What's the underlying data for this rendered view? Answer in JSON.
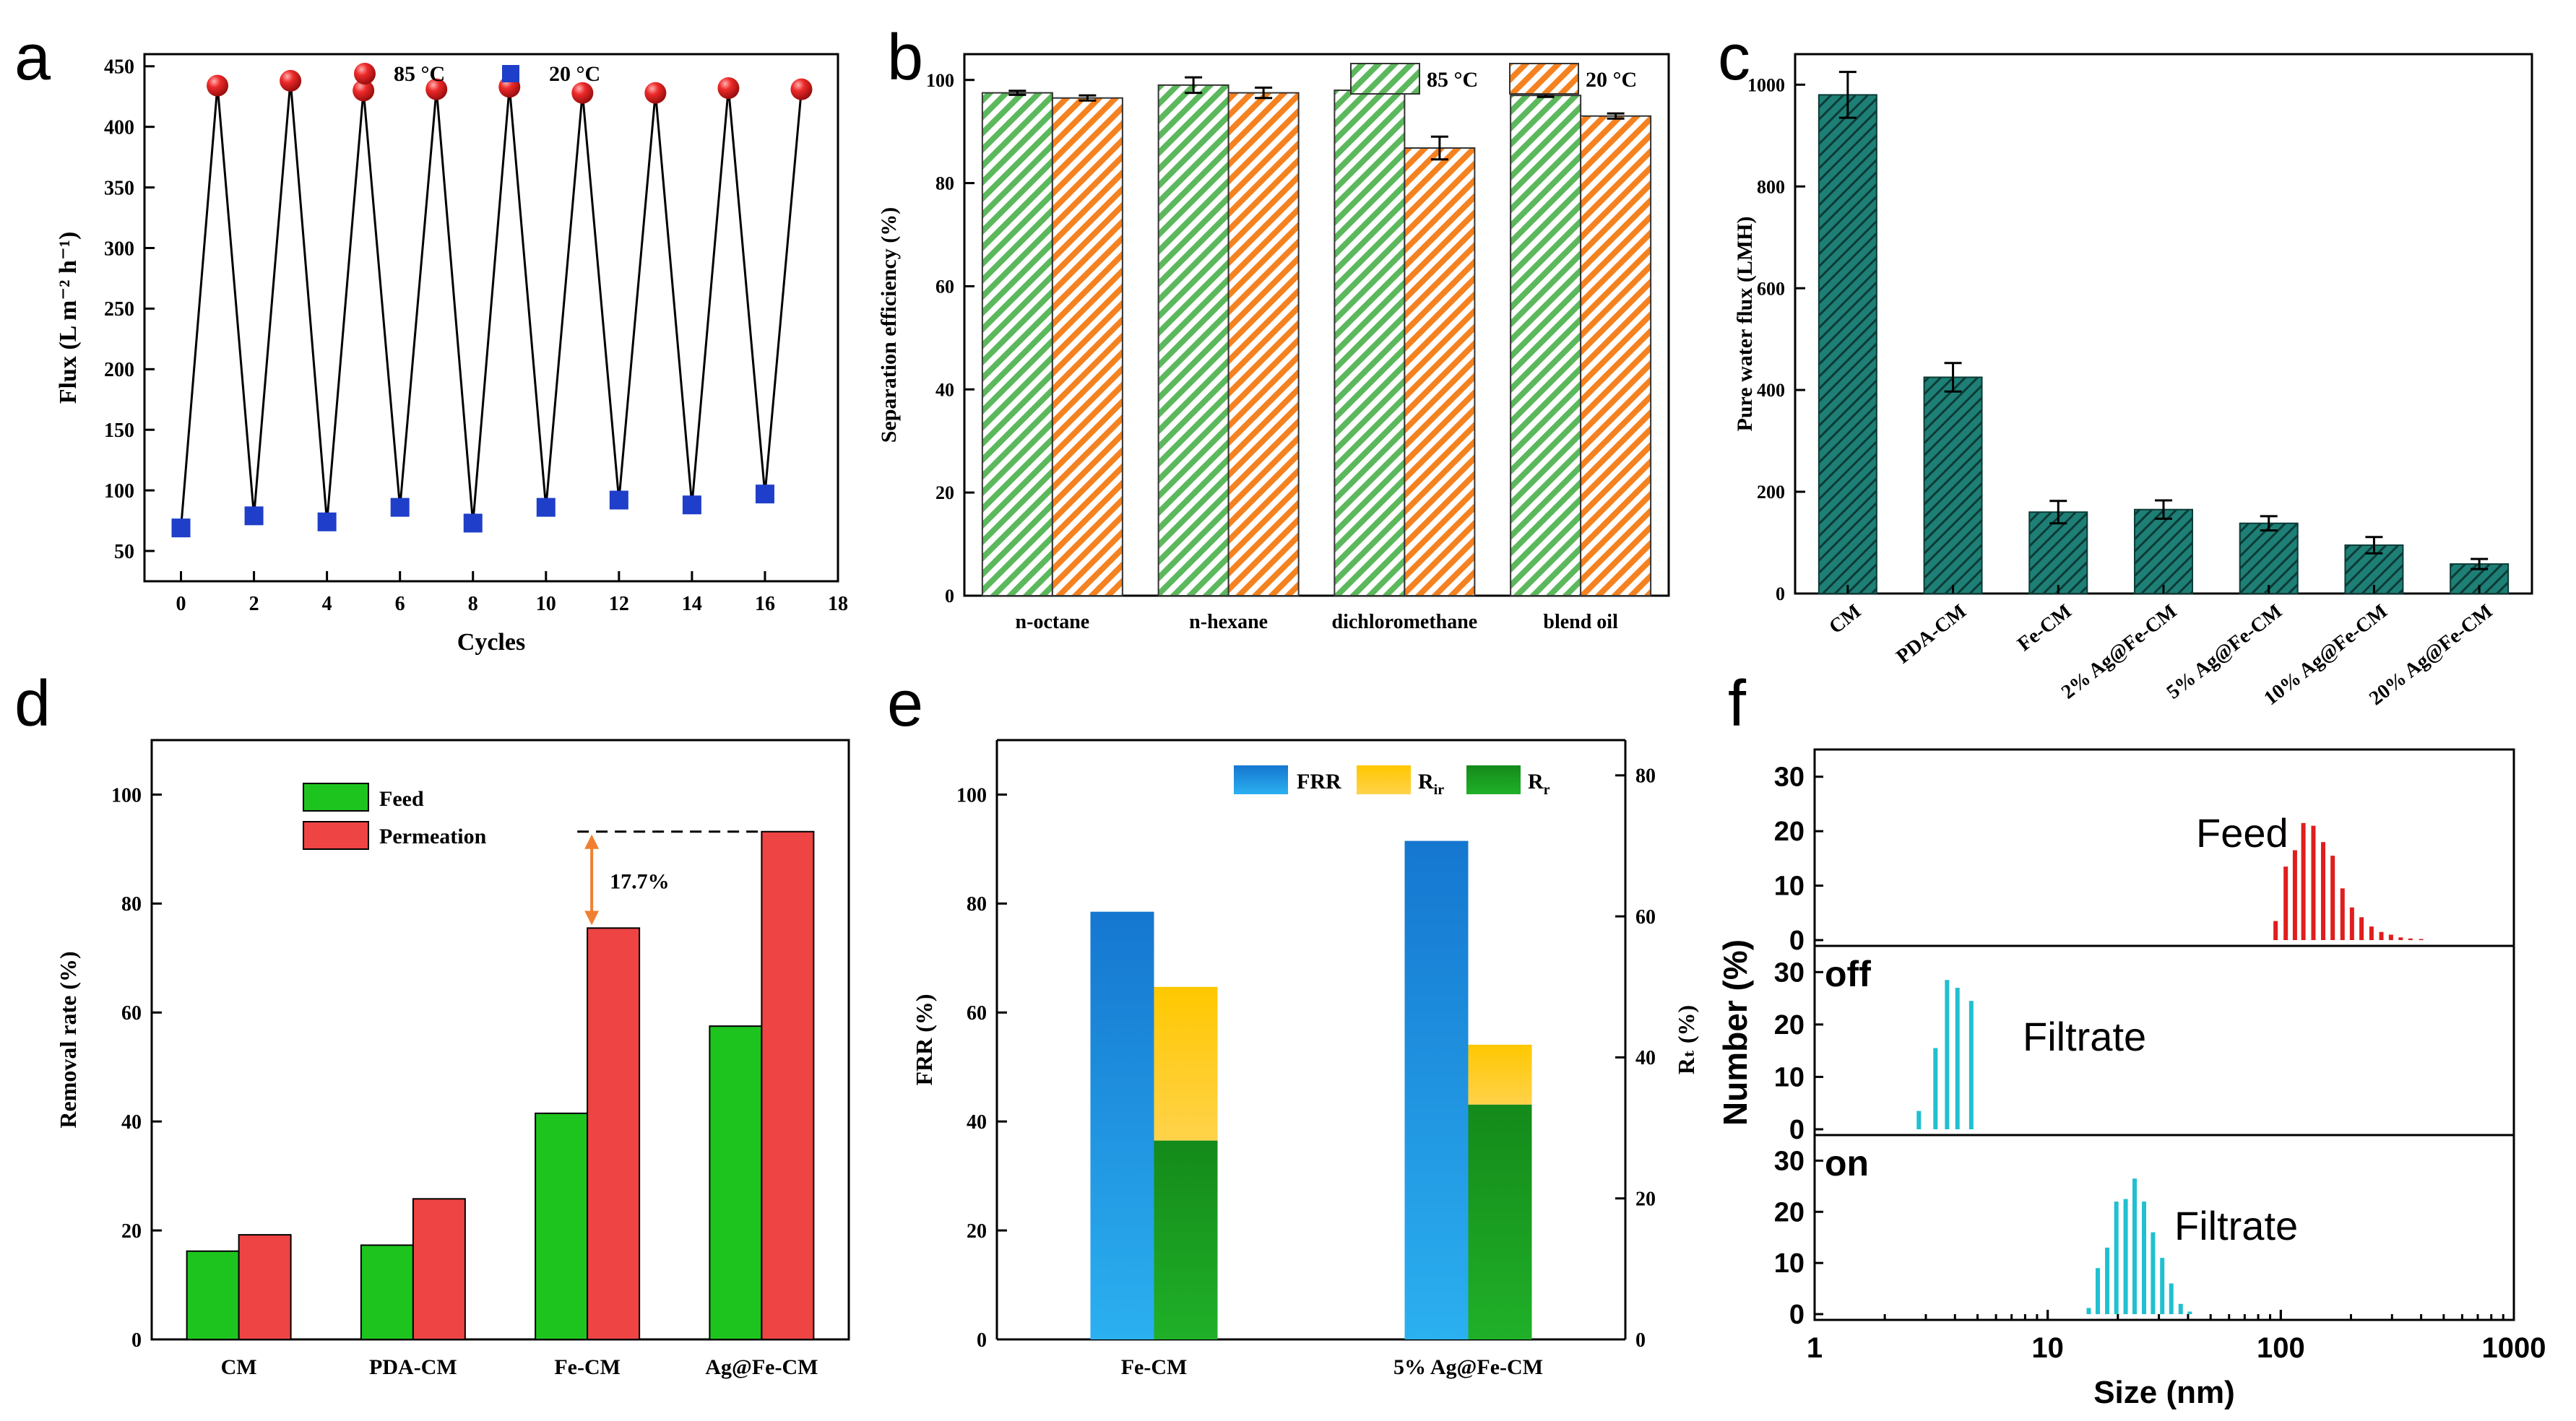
{
  "colors": {
    "red_marker": "#e8292b",
    "blue_marker": "#1f3ec9",
    "green_bar": "#5cb85c",
    "orange_bar": "#f58220",
    "teal_bar": "#1e7f76",
    "bright_green": "#1ec41e",
    "bright_red": "#ee4444",
    "frr_blue": "#1a7fd2",
    "rir_yellow": "#ffc31a",
    "rr_green": "#149c1e",
    "dist_red": "#e01e1e",
    "dist_cyan": "#20c0d0",
    "arrow_orange": "#f08030"
  },
  "chart_data": [
    {
      "panel": "a",
      "type": "line",
      "xlabel": "Cycles",
      "ylabel": "Flux (L m⁻² h⁻¹)",
      "xlim": [
        -1,
        18
      ],
      "ylim": [
        25,
        460
      ],
      "xticks": [
        "0",
        "2",
        "4",
        "6",
        "8",
        "10",
        "12",
        "14",
        "16",
        "18"
      ],
      "yticks": [
        "50",
        "100",
        "150",
        "200",
        "250",
        "300",
        "350",
        "400",
        "450"
      ],
      "legend": [
        "85 °C",
        "20 °C"
      ],
      "x": [
        0,
        1,
        2,
        3,
        4,
        5,
        6,
        7,
        8,
        9,
        10,
        11,
        12,
        13,
        14,
        15,
        16,
        17
      ],
      "y": [
        69,
        434,
        79,
        438,
        74,
        430,
        86,
        431,
        73,
        433,
        86,
        428,
        92,
        428,
        88,
        432,
        97,
        431
      ],
      "series": [
        {
          "name": "85 °C",
          "x": [
            1,
            3,
            5,
            7,
            9,
            11,
            13,
            15,
            17
          ],
          "values": [
            434,
            438,
            430,
            431,
            433,
            428,
            428,
            432,
            431
          ]
        },
        {
          "name": "20 °C",
          "x": [
            0,
            2,
            4,
            6,
            8,
            10,
            12,
            14,
            16
          ],
          "values": [
            69,
            79,
            74,
            86,
            73,
            86,
            92,
            88,
            97
          ]
        }
      ]
    },
    {
      "panel": "b",
      "type": "bar",
      "ylabel": "Separation efficiency (%)",
      "ylim": [
        0,
        105
      ],
      "yticks": [
        "0",
        "20",
        "40",
        "60",
        "80",
        "100"
      ],
      "categories": [
        "n-octane",
        "n-hexane",
        "dichloromethane",
        "blend oil"
      ],
      "series": [
        {
          "name": "85 °C",
          "values": [
            97.5,
            99.0,
            98.0,
            97.0
          ],
          "errors": [
            0.4,
            1.5,
            0.4,
            0.3
          ]
        },
        {
          "name": "20 °C",
          "values": [
            96.5,
            97.5,
            86.8,
            93.0
          ],
          "errors": [
            0.5,
            1.0,
            2.2,
            0.5
          ]
        }
      ]
    },
    {
      "panel": "c",
      "type": "bar",
      "ylabel": "Pure water flux (LMH)",
      "ylim": [
        0,
        1060
      ],
      "yticks": [
        "0",
        "200",
        "400",
        "600",
        "800",
        "1000"
      ],
      "categories": [
        "CM",
        "PDA-CM",
        "Fe-CM",
        "2% Ag@Fe-CM",
        "5% Ag@Fe-CM",
        "10% Ag@Fe-CM",
        "20% Ag@Fe-CM"
      ],
      "values": [
        980,
        425,
        160,
        165,
        138,
        95,
        58
      ],
      "errors": [
        45,
        28,
        22,
        18,
        14,
        16,
        10
      ]
    },
    {
      "panel": "d",
      "type": "bar",
      "ylabel": "Removal rate (%)",
      "ylim": [
        0,
        110
      ],
      "yticks": [
        "0",
        "20",
        "40",
        "60",
        "80",
        "100"
      ],
      "categories": [
        "CM",
        "PDA-CM",
        "Fe-CM",
        "Ag@Fe-CM"
      ],
      "series": [
        {
          "name": "Feed",
          "values": [
            16.2,
            17.3,
            41.5,
            57.5
          ]
        },
        {
          "name": "Permeation",
          "values": [
            19.2,
            25.8,
            75.5,
            93.2
          ]
        }
      ],
      "annotation": "17.7%"
    },
    {
      "panel": "e",
      "type": "bar",
      "ylabel": "FRR (%)",
      "y2label": "Rₜ (%)",
      "ylim": [
        0,
        110
      ],
      "y2lim": [
        0,
        85
      ],
      "yticks": [
        "0",
        "20",
        "40",
        "60",
        "80",
        "100"
      ],
      "y2ticks": [
        "0",
        "20",
        "40",
        "60",
        "80"
      ],
      "categories": [
        "Fe-CM",
        "5% Ag@Fe-CM"
      ],
      "legend": [
        "FRR",
        "Rir",
        "Rr"
      ],
      "series": [
        {
          "name": "FRR",
          "values": [
            78.5,
            91.5
          ]
        },
        {
          "name": "Rr",
          "values": [
            28.2,
            33.3
          ]
        },
        {
          "name": "Rir",
          "values": [
            21.8,
            8.5
          ]
        }
      ]
    },
    {
      "panel": "f",
      "type": "bar",
      "xlabel": "Size (nm)",
      "ylabel": "Number (%)",
      "xscale": "log",
      "xlim": [
        1,
        1000
      ],
      "xticks": [
        "1",
        "10",
        "100",
        "1000"
      ],
      "yticks": [
        "0",
        "10",
        "20",
        "30"
      ],
      "subplots": [
        {
          "label": "",
          "name": "Feed",
          "x": [
            95,
            105,
            115,
            125,
            138,
            152,
            167,
            184,
            202,
            222,
            245,
            270,
            297,
            327,
            360,
            400
          ],
          "values": [
            3.5,
            13.5,
            16.5,
            21.5,
            21,
            18,
            15.5,
            9.5,
            6,
            4.2,
            2.5,
            1.5,
            1,
            0.5,
            0.3,
            0.2
          ]
        },
        {
          "label": "off",
          "name": "Filtrate",
          "x": [
            2.8,
            3.3,
            3.7,
            4.1,
            4.7
          ],
          "values": [
            3.5,
            15.5,
            28.5,
            27,
            24.5
          ]
        },
        {
          "label": "on",
          "name": "Filtrate",
          "x": [
            15.0,
            16.4,
            18.0,
            19.7,
            21.6,
            23.6,
            25.9,
            28.3,
            31.0,
            33.9,
            37.2,
            40.7
          ],
          "values": [
            1.2,
            9,
            13,
            22,
            22.5,
            26.5,
            22,
            16,
            11,
            6,
            2,
            0.5
          ]
        }
      ]
    }
  ],
  "labels": {
    "panel_a": "a",
    "panel_b": "b",
    "panel_c": "c",
    "panel_d": "d",
    "panel_e": "e",
    "panel_f": "f"
  }
}
